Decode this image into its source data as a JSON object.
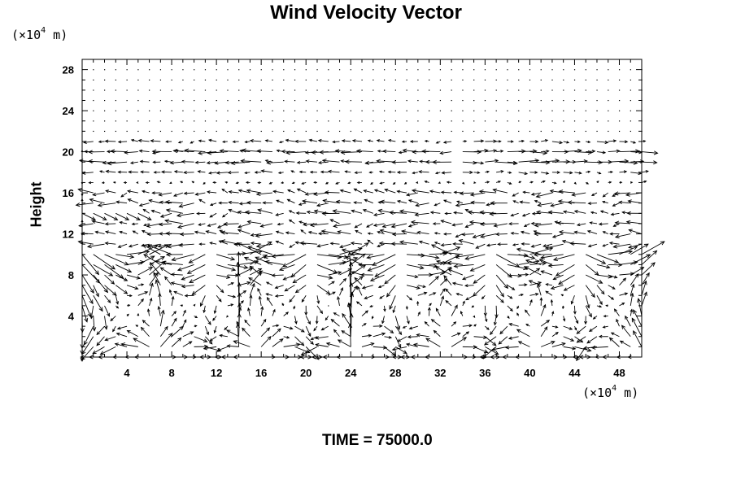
{
  "chart_data": {
    "type": "vector_field",
    "title": "Wind Velocity Vector",
    "xunit": {
      "prefix": "(×10",
      "exp": "4",
      "suffix": " m)"
    },
    "yunit": {
      "prefix": "(×10",
      "exp": "4",
      "suffix": " m)"
    },
    "ylabel": "Height",
    "xlim": [
      0,
      50
    ],
    "ylim": [
      0,
      29
    ],
    "xticks": [
      4,
      8,
      12,
      16,
      20,
      24,
      28,
      32,
      36,
      40,
      44,
      48
    ],
    "yticks": [
      4,
      8,
      12,
      16,
      20,
      24,
      28
    ],
    "grid": false,
    "time_label": "TIME = 75000.0"
  }
}
